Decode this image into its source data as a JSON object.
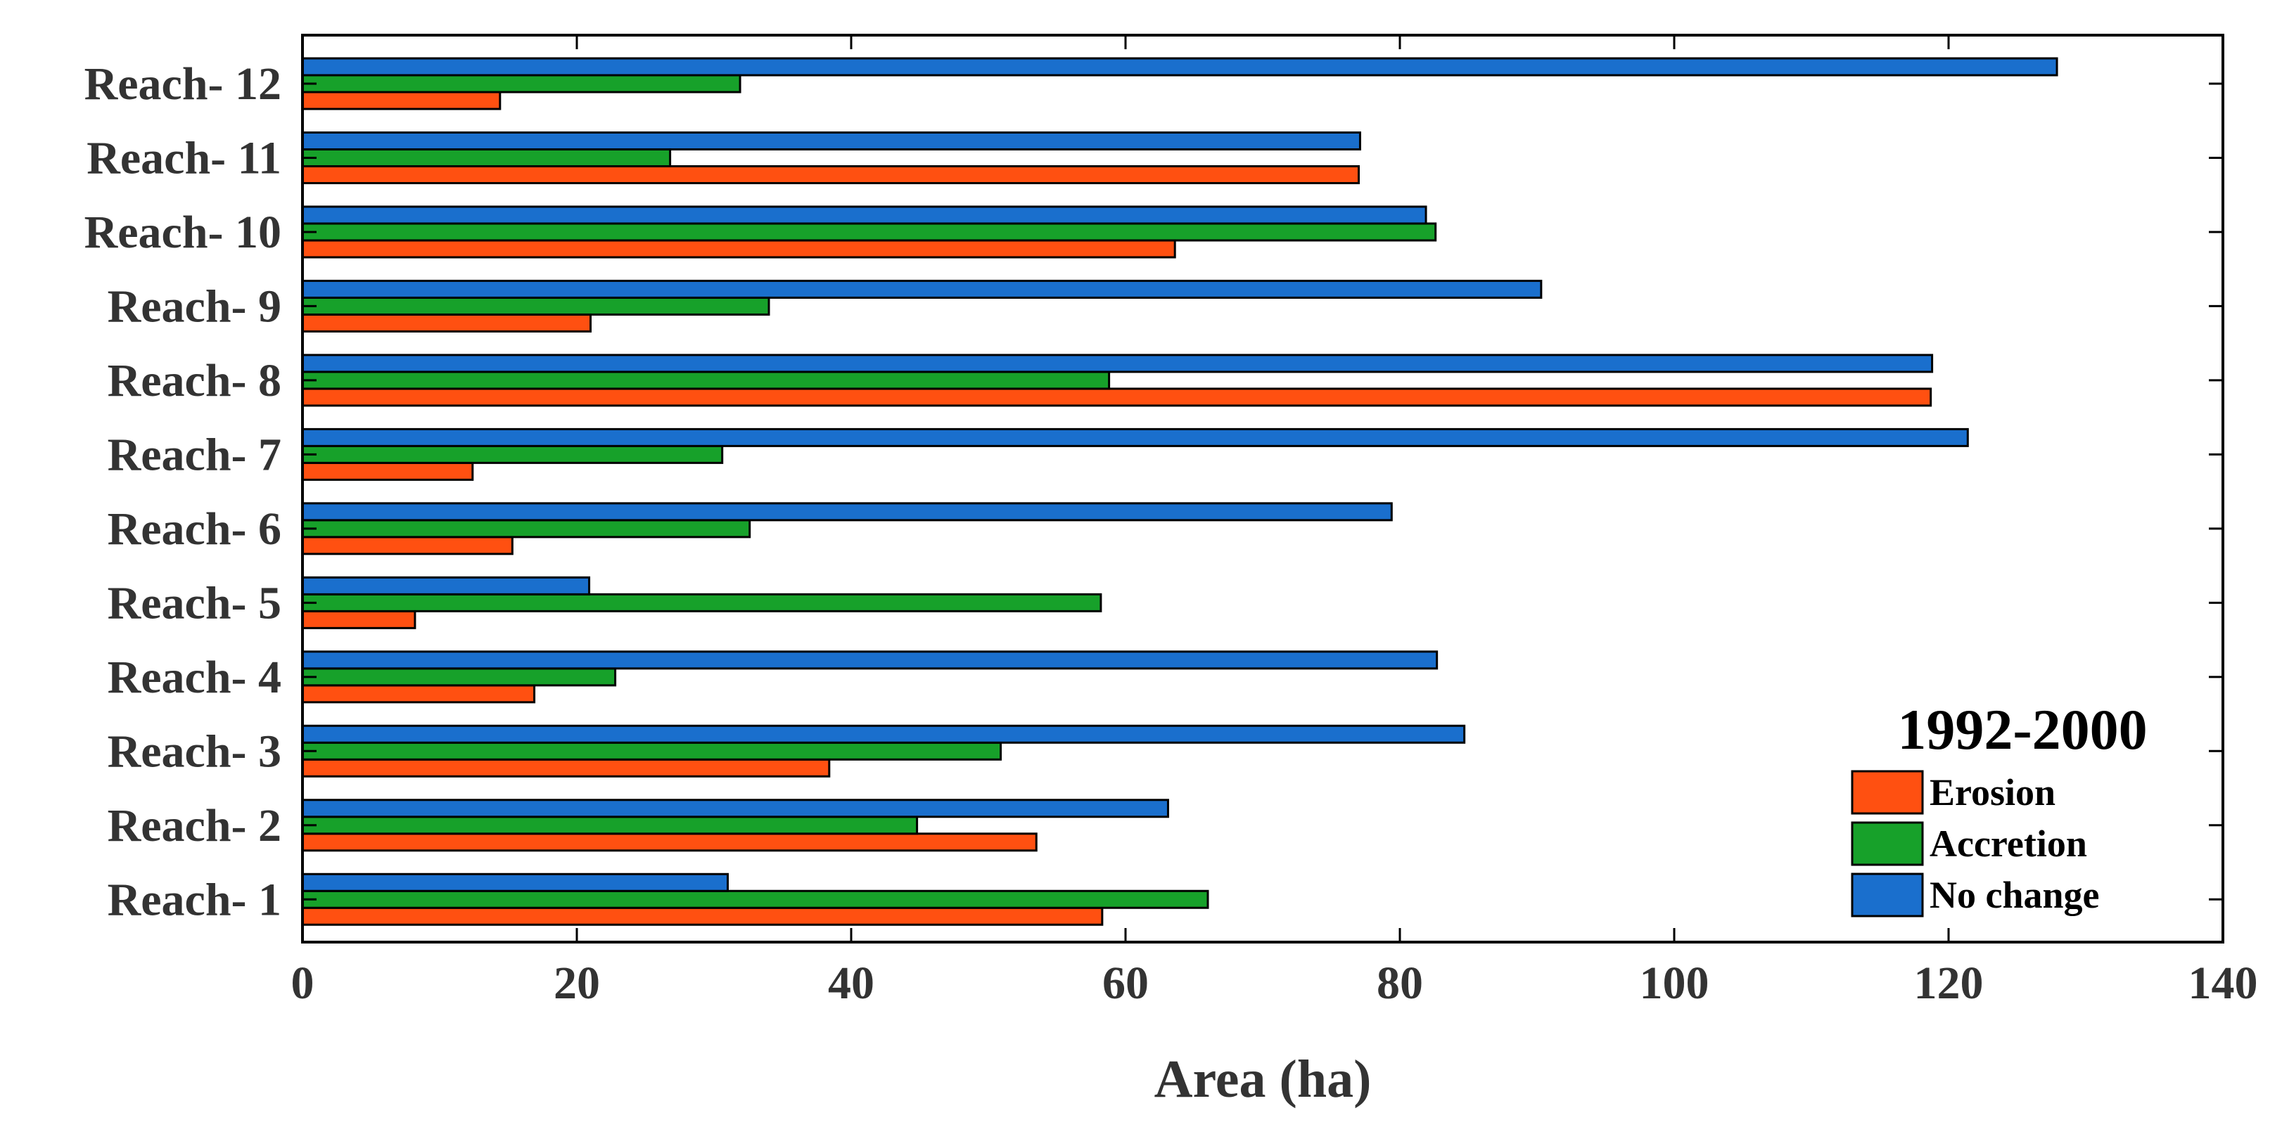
{
  "chart_data": {
    "type": "bar",
    "orientation": "horizontal",
    "title": "",
    "xlabel": "Area (ha)",
    "ylabel": "",
    "xlim": [
      0,
      140
    ],
    "xticks": [
      0,
      20,
      40,
      60,
      80,
      100,
      120,
      140
    ],
    "grid": false,
    "categories": [
      "Reach- 1",
      "Reach- 2",
      "Reach- 3",
      "Reach- 4",
      "Reach- 5",
      "Reach- 6",
      "Reach- 7",
      "Reach- 8",
      "Reach- 9",
      "Reach- 10",
      "Reach- 11",
      "Reach- 12"
    ],
    "series": [
      {
        "name": "Erosion",
        "color": "#FF5011",
        "values": [
          58.3,
          53.5,
          38.4,
          16.9,
          8.2,
          15.3,
          12.4,
          118.7,
          21.0,
          63.6,
          77.0,
          14.4
        ]
      },
      {
        "name": "Accretion",
        "color": "#17A12A",
        "values": [
          66.0,
          44.8,
          50.9,
          22.8,
          58.2,
          32.6,
          30.6,
          58.8,
          34.0,
          82.6,
          26.8,
          31.9
        ]
      },
      {
        "name": "No change",
        "color": "#1A6FCD",
        "values": [
          31.0,
          63.1,
          84.7,
          82.7,
          20.9,
          79.4,
          121.4,
          118.8,
          90.3,
          81.9,
          77.1,
          127.9
        ]
      }
    ],
    "legend": {
      "title": "1992-2000",
      "position": "bottom-right"
    }
  }
}
